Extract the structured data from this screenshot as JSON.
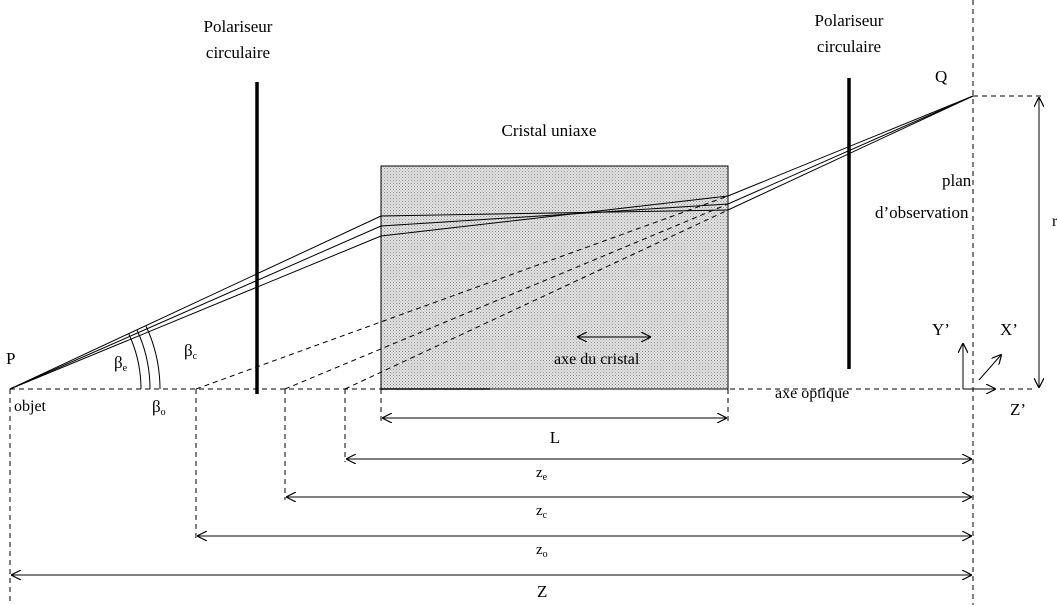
{
  "labels": {
    "polariseur_left_l1": "Polariseur",
    "polariseur_left_l2": "circulaire",
    "polariseur_right_l1": "Polariseur",
    "polariseur_right_l2": "circulaire",
    "cristal": "Cristal uniaxe",
    "axe_cristal": "axe du cristal",
    "axe_optique": "axe optique",
    "plan_l1": "plan",
    "plan_l2": "d’observation",
    "r": "r",
    "P": "P",
    "Q": "Q",
    "objet": "objet",
    "beta": "β",
    "beta_e_sub": "e",
    "beta_c_sub": "c",
    "beta_o_sub": "o",
    "L": "L",
    "z": "z",
    "z_e_sub": "e",
    "z_c_sub": "c",
    "z_o_sub": "o",
    "Z": "Z",
    "Y_axis": "Y’",
    "X_axis": "X’",
    "Z_axis": "Z’"
  },
  "colors": {
    "crystal_fill": "#d6d6d6",
    "ink": "#000000"
  }
}
